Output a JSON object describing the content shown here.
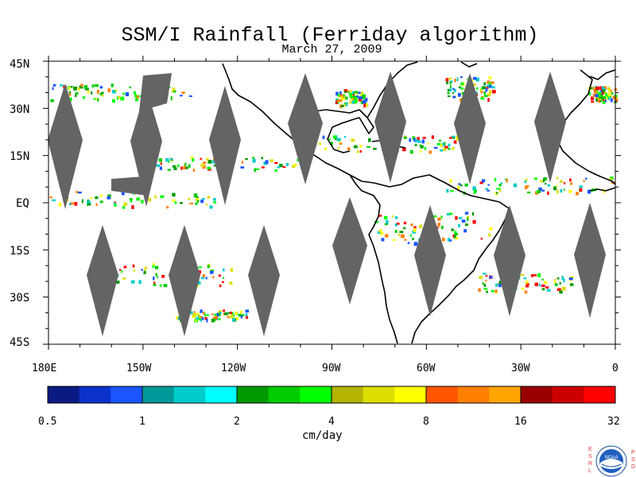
{
  "title": "SSM/I Rainfall (Ferriday algorithm)",
  "subtitle": "March 27, 2009",
  "map": {
    "lat_labels": [
      "45N",
      "30N",
      "15N",
      "EQ",
      "15S",
      "30S",
      "45S"
    ],
    "lon_labels": [
      "180E",
      "150W",
      "120W",
      "90W",
      "60W",
      "30W",
      "0"
    ],
    "extent": {
      "lon_min": -180,
      "lon_max": 0,
      "lat_min": -45,
      "lat_max": 45
    },
    "missing_color": "#646464",
    "land_outline_color": "#000000"
  },
  "colorbar": {
    "tick_labels": [
      "0.5",
      "1",
      "2",
      "4",
      "8",
      "16",
      "32"
    ],
    "units": "cm/day",
    "colors": [
      "#0b1a82",
      "#0b33cc",
      "#1a55ff",
      "#009999",
      "#00cccc",
      "#00ffff",
      "#009900",
      "#00cc00",
      "#00ff00",
      "#b3b300",
      "#dddd00",
      "#ffff00",
      "#ff5500",
      "#ff7f00",
      "#ffa500",
      "#990000",
      "#cc0000",
      "#ff0000"
    ]
  },
  "logo": {
    "left_letters": [
      "E",
      "S",
      "R",
      "L"
    ],
    "right_letters": [
      "P",
      "S",
      "D"
    ],
    "center_text": "NOAA"
  }
}
